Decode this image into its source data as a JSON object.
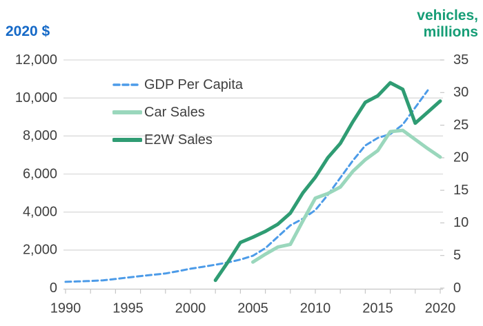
{
  "titles": {
    "left_axis": "2020 $",
    "right_axis_line1": "vehicles,",
    "right_axis_line2": "millions"
  },
  "legend": {
    "items": [
      {
        "label": "GDP Per Capita",
        "color": "#4c9be8",
        "style": "dashed"
      },
      {
        "label": "Car Sales",
        "color": "#9ad7bc",
        "style": "solid"
      },
      {
        "label": "E2W Sales",
        "color": "#2f9c73",
        "style": "solid"
      }
    ]
  },
  "colors": {
    "left_axis_title": "#1569c7",
    "right_axis_title": "#169d76",
    "tick_text": "#3f3f3f",
    "gridline": "#dadada",
    "axis_line": "#c6c6c6"
  },
  "chart_data": {
    "type": "line",
    "title": "",
    "grid": "horizontal",
    "legend_position": "inside-top-left",
    "x_axis": {
      "range": [
        1990,
        2020
      ],
      "tick_labels": [
        "1990",
        "1995",
        "2000",
        "2005",
        "2010",
        "2015",
        "2020"
      ],
      "minor_tick_step_years": 2
    },
    "y_axis_left": {
      "title": "2020 $",
      "range": [
        0,
        12000
      ],
      "tick_labels": [
        "0",
        "2,000",
        "4,000",
        "6,000",
        "8,000",
        "10,000",
        "12,000"
      ]
    },
    "y_axis_right": {
      "title": "vehicles, millions",
      "range": [
        0,
        35
      ],
      "tick_labels": [
        "0",
        "5",
        "10",
        "15",
        "20",
        "25",
        "30",
        "35"
      ]
    },
    "series": [
      {
        "name": "GDP Per Capita",
        "axis": "left",
        "line_style": "dashed",
        "color": "#4c9be8",
        "x": [
          1990,
          1991,
          1992,
          1993,
          1994,
          1995,
          1996,
          1997,
          1998,
          1999,
          2000,
          2001,
          2002,
          2003,
          2004,
          2005,
          2006,
          2007,
          2008,
          2009,
          2010,
          2011,
          2012,
          2013,
          2014,
          2015,
          2016,
          2017,
          2018,
          2019
        ],
        "values": [
          330,
          350,
          375,
          410,
          480,
          560,
          630,
          700,
          770,
          890,
          1020,
          1120,
          1230,
          1350,
          1500,
          1700,
          2100,
          2700,
          3300,
          3650,
          4100,
          4900,
          5800,
          6700,
          7500,
          7900,
          8100,
          8600,
          9500,
          10400
        ]
      },
      {
        "name": "Car Sales",
        "axis": "right",
        "line_style": "solid",
        "color": "#9ad7bc",
        "x": [
          2005,
          2006,
          2007,
          2008,
          2009,
          2010,
          2011,
          2012,
          2013,
          2014,
          2015,
          2016,
          2017,
          2018,
          2019,
          2020
        ],
        "values": [
          4.0,
          5.2,
          6.3,
          6.7,
          10.3,
          13.8,
          14.5,
          15.5,
          17.9,
          19.7,
          21.1,
          24.0,
          24.2,
          22.8,
          21.4,
          20.1
        ]
      },
      {
        "name": "E2W Sales",
        "axis": "right",
        "line_style": "solid",
        "color": "#2f9c73",
        "x": [
          2002,
          2003,
          2004,
          2005,
          2006,
          2007,
          2008,
          2009,
          2010,
          2011,
          2012,
          2013,
          2014,
          2015,
          2016,
          2017,
          2018,
          2019,
          2020
        ],
        "values": [
          1.2,
          4.0,
          7.0,
          7.8,
          8.7,
          9.8,
          11.5,
          14.6,
          17.0,
          20.0,
          22.2,
          25.5,
          28.5,
          29.5,
          31.5,
          30.5,
          25.3,
          27.0,
          28.7
        ]
      }
    ]
  }
}
